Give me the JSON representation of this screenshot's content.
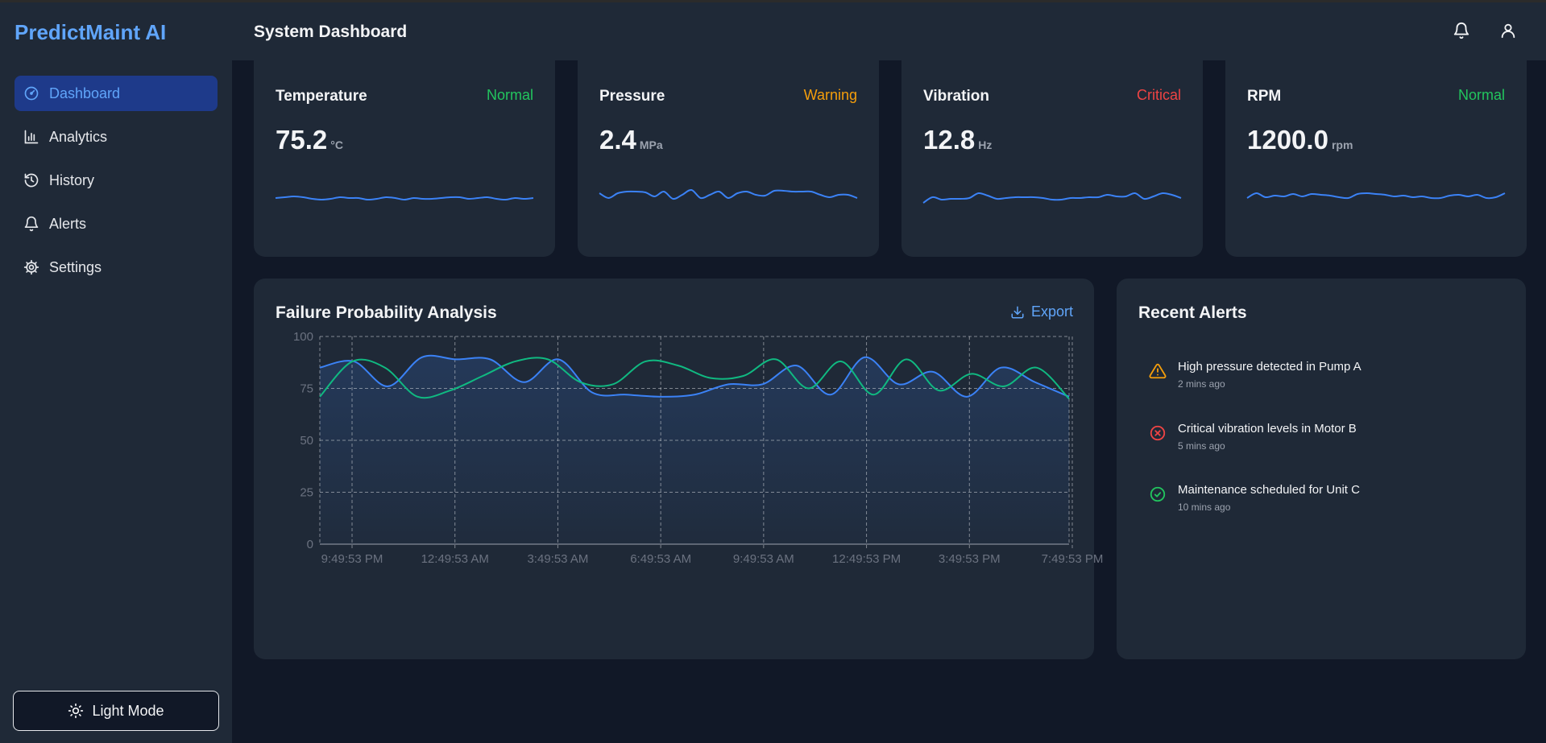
{
  "app": {
    "title": "PredictMaint AI"
  },
  "header": {
    "title": "System Dashboard",
    "icons": [
      "bell-icon",
      "user-icon"
    ]
  },
  "sidebar": {
    "items": [
      {
        "label": "Dashboard",
        "icon": "gauge-icon",
        "active": true
      },
      {
        "label": "Analytics",
        "icon": "bar-chart-icon",
        "active": false
      },
      {
        "label": "History",
        "icon": "history-icon",
        "active": false
      },
      {
        "label": "Alerts",
        "icon": "bell-icon",
        "active": false
      },
      {
        "label": "Settings",
        "icon": "gear-icon",
        "active": false
      }
    ],
    "mode_button": "Light Mode"
  },
  "metrics": [
    {
      "name": "Temperature",
      "status": "Normal",
      "status_color": "#22c55e",
      "value": "75.2",
      "unit": "°C",
      "sparkline": [
        46,
        45,
        44,
        45,
        47,
        48,
        47,
        45,
        46,
        46,
        48,
        47,
        45,
        46,
        48,
        46,
        47,
        47,
        46,
        45,
        45,
        47,
        46,
        45,
        47,
        48,
        46,
        47,
        46
      ]
    },
    {
      "name": "Pressure",
      "status": "Warning",
      "status_color": "#f59e0b",
      "value": "2.4",
      "unit": "MPa",
      "sparkline": [
        40,
        46,
        40,
        38,
        38,
        39,
        44,
        38,
        47,
        42,
        36,
        46,
        42,
        38,
        46,
        40,
        38,
        42,
        43,
        37,
        37,
        38,
        38,
        38,
        42,
        45,
        42,
        42,
        46
      ]
    },
    {
      "name": "Vibration",
      "status": "Critical",
      "status_color": "#ef4444",
      "value": "12.8",
      "unit": "Hz",
      "sparkline": [
        52,
        45,
        48,
        47,
        47,
        46,
        40,
        43,
        47,
        46,
        45,
        45,
        45,
        46,
        48,
        48,
        46,
        46,
        45,
        45,
        42,
        44,
        44,
        40,
        47,
        44,
        40,
        42,
        46
      ]
    },
    {
      "name": "RPM",
      "status": "Normal",
      "status_color": "#22c55e",
      "value": "1200.0",
      "unit": "rpm",
      "sparkline": [
        46,
        40,
        45,
        43,
        44,
        41,
        44,
        41,
        42,
        43,
        45,
        46,
        41,
        40,
        41,
        42,
        44,
        43,
        45,
        44,
        46,
        46,
        43,
        42,
        44,
        42,
        46,
        45,
        40
      ]
    }
  ],
  "chart_card": {
    "title": "Failure Probability Analysis",
    "export_label": "Export"
  },
  "chart_data": {
    "type": "area",
    "title": "Failure Probability Analysis",
    "ylim": [
      0,
      100
    ],
    "yticks": [
      0,
      25,
      50,
      75,
      100
    ],
    "xticks": [
      "9:49:53 PM",
      "12:49:53 AM",
      "3:49:53 AM",
      "6:49:53 AM",
      "9:49:53 AM",
      "12:49:53 PM",
      "3:49:53 PM",
      "7:49:53 PM"
    ],
    "grid": true,
    "series": [
      {
        "color": "#3b82f6",
        "values": [
          85,
          88,
          76,
          90,
          89,
          89,
          78,
          89,
          73,
          72,
          71,
          72,
          77,
          77,
          86,
          72,
          90,
          77,
          83,
          71,
          85,
          78,
          71
        ]
      },
      {
        "color": "#10b981",
        "values": [
          71,
          88,
          85,
          71,
          74,
          81,
          88,
          89,
          78,
          77,
          88,
          86,
          80,
          81,
          89,
          75,
          88,
          72,
          89,
          74,
          82,
          76,
          85,
          70
        ]
      }
    ]
  },
  "alerts_card": {
    "title": "Recent Alerts",
    "items": [
      {
        "text": "High pressure detected in Pump A",
        "time": "2 mins ago",
        "icon": "warning-icon",
        "color": "#f59e0b"
      },
      {
        "text": "Critical vibration levels in Motor B",
        "time": "5 mins ago",
        "icon": "x-circle-icon",
        "color": "#ef4444"
      },
      {
        "text": "Maintenance scheduled for Unit C",
        "time": "10 mins ago",
        "icon": "check-circle-icon",
        "color": "#22c55e"
      }
    ]
  }
}
